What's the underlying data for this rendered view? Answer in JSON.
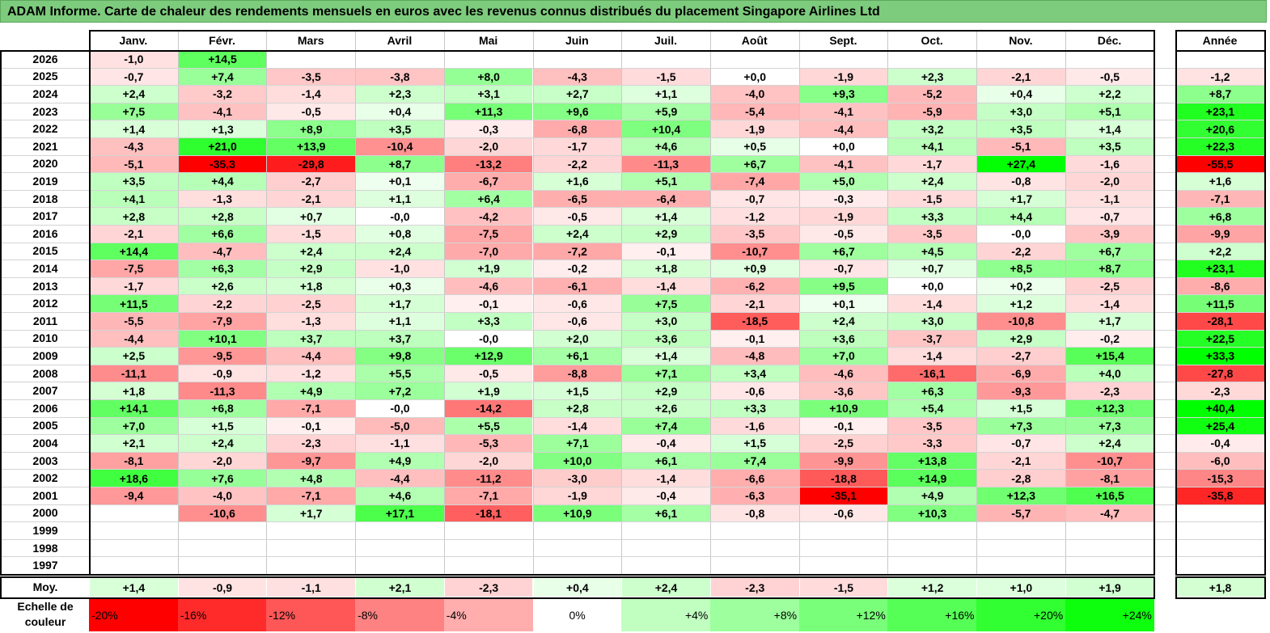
{
  "title": "ADAM Informe. Carte de chaleur des rendements mensuels en euros avec les revenus connus distribués du placement Singapore Airlines Ltd",
  "chart_data": {
    "type": "heatmap",
    "title": "ADAM Informe. Carte de chaleur des rendements mensuels en euros avec les revenus connus distribués du placement Singapore Airlines Ltd",
    "months": [
      "Janv.",
      "Févr.",
      "Mars",
      "Avril",
      "Mai",
      "Juin",
      "Juil.",
      "Août",
      "Sept.",
      "Oct.",
      "Nov.",
      "Déc."
    ],
    "year_header": "Année",
    "avg_label": "Moy.",
    "rows": [
      {
        "year": "2026",
        "values": [
          "-1,0",
          "+14,5",
          "",
          "",
          "",
          "",
          "",
          "",
          "",
          "",
          "",
          ""
        ],
        "annual": ""
      },
      {
        "year": "2025",
        "values": [
          "-0,7",
          "+7,4",
          "-3,5",
          "-3,8",
          "+8,0",
          "-4,3",
          "-1,5",
          "+0,0",
          "-1,9",
          "+2,3",
          "-2,1",
          "-0,5"
        ],
        "annual": "-1,2"
      },
      {
        "year": "2024",
        "values": [
          "+2,4",
          "-3,2",
          "-1,4",
          "+2,3",
          "+3,1",
          "+2,7",
          "+1,1",
          "-4,0",
          "+9,3",
          "-5,2",
          "+0,4",
          "+2,2"
        ],
        "annual": "+8,7"
      },
      {
        "year": "2023",
        "values": [
          "+7,5",
          "-4,1",
          "-0,5",
          "+0,4",
          "+11,3",
          "+9,6",
          "+5,9",
          "-5,4",
          "-4,1",
          "-5,9",
          "+3,0",
          "+5,1"
        ],
        "annual": "+23,1"
      },
      {
        "year": "2022",
        "values": [
          "+1,4",
          "+1,3",
          "+8,9",
          "+3,5",
          "-0,3",
          "-6,8",
          "+10,4",
          "-1,9",
          "-4,4",
          "+3,2",
          "+3,5",
          "+1,4"
        ],
        "annual": "+20,6"
      },
      {
        "year": "2021",
        "values": [
          "-4,3",
          "+21,0",
          "+13,9",
          "-10,4",
          "-2,0",
          "-1,7",
          "+4,6",
          "+0,5",
          "+0,0",
          "+4,1",
          "-5,1",
          "+3,5"
        ],
        "annual": "+22,3"
      },
      {
        "year": "2020",
        "values": [
          "-5,1",
          "-35,3",
          "-29,8",
          "+8,7",
          "-13,2",
          "-2,2",
          "-11,3",
          "+6,7",
          "-4,1",
          "-1,7",
          "+27,4",
          "-1,6"
        ],
        "annual": "-55,5"
      },
      {
        "year": "2019",
        "values": [
          "+3,5",
          "+4,4",
          "-2,7",
          "+0,1",
          "-6,7",
          "+1,6",
          "+5,1",
          "-7,4",
          "+5,0",
          "+2,4",
          "-0,8",
          "-2,0"
        ],
        "annual": "+1,6"
      },
      {
        "year": "2018",
        "values": [
          "+4,1",
          "-1,3",
          "-2,1",
          "+1,1",
          "+6,4",
          "-6,5",
          "-6,4",
          "-0,7",
          "-0,3",
          "-1,5",
          "+1,7",
          "-1,1"
        ],
        "annual": "-7,1"
      },
      {
        "year": "2017",
        "values": [
          "+2,8",
          "+2,8",
          "+0,7",
          "-0,0",
          "-4,2",
          "-0,5",
          "+1,4",
          "-1,2",
          "-1,9",
          "+3,3",
          "+4,4",
          "-0,7"
        ],
        "annual": "+6,8"
      },
      {
        "year": "2016",
        "values": [
          "-2,1",
          "+6,6",
          "-1,5",
          "+0,8",
          "-7,5",
          "+2,4",
          "+2,9",
          "-3,5",
          "-0,5",
          "-3,5",
          "-0,0",
          "-3,9"
        ],
        "annual": "-9,9"
      },
      {
        "year": "2015",
        "values": [
          "+14,4",
          "-4,7",
          "+2,4",
          "+2,4",
          "-7,0",
          "-7,2",
          "-0,1",
          "-10,7",
          "+6,7",
          "+4,5",
          "-2,2",
          "+6,7"
        ],
        "annual": "+2,2"
      },
      {
        "year": "2014",
        "values": [
          "-7,5",
          "+6,3",
          "+2,9",
          "-1,0",
          "+1,9",
          "-0,2",
          "+1,8",
          "+0,9",
          "-0,7",
          "+0,7",
          "+8,5",
          "+8,7"
        ],
        "annual": "+23,1"
      },
      {
        "year": "2013",
        "values": [
          "-1,7",
          "+2,6",
          "+1,8",
          "+0,3",
          "-4,6",
          "-6,1",
          "-1,4",
          "-6,2",
          "+9,5",
          "+0,0",
          "+0,2",
          "-2,5"
        ],
        "annual": "-8,6"
      },
      {
        "year": "2012",
        "values": [
          "+11,5",
          "-2,2",
          "-2,5",
          "+1,7",
          "-0,1",
          "-0,6",
          "+7,5",
          "-2,1",
          "+0,1",
          "-1,4",
          "+1,2",
          "-1,4"
        ],
        "annual": "+11,5"
      },
      {
        "year": "2011",
        "values": [
          "-5,5",
          "-7,9",
          "-1,3",
          "+1,1",
          "+3,3",
          "-0,6",
          "+3,0",
          "-18,5",
          "+2,4",
          "+3,0",
          "-10,8",
          "+1,7"
        ],
        "annual": "-28,1"
      },
      {
        "year": "2010",
        "values": [
          "-4,4",
          "+10,1",
          "+3,7",
          "+3,7",
          "-0,0",
          "+2,0",
          "+3,6",
          "-0,1",
          "+3,6",
          "-3,7",
          "+2,9",
          "-0,2"
        ],
        "annual": "+22,5"
      },
      {
        "year": "2009",
        "values": [
          "+2,5",
          "-9,5",
          "-4,4",
          "+9,8",
          "+12,9",
          "+6,1",
          "+1,4",
          "-4,8",
          "+7,0",
          "-1,4",
          "-2,7",
          "+15,4"
        ],
        "annual": "+33,3"
      },
      {
        "year": "2008",
        "values": [
          "-11,1",
          "-0,9",
          "-1,2",
          "+5,5",
          "-0,5",
          "-8,8",
          "+7,1",
          "+3,4",
          "-4,6",
          "-16,1",
          "-6,9",
          "+4,0"
        ],
        "annual": "-27,8"
      },
      {
        "year": "2007",
        "values": [
          "+1,8",
          "-11,3",
          "+4,9",
          "+7,2",
          "+1,9",
          "+1,5",
          "+2,9",
          "-0,6",
          "-3,6",
          "+6,3",
          "-9,3",
          "-2,3"
        ],
        "annual": "-2,3"
      },
      {
        "year": "2006",
        "values": [
          "+14,1",
          "+6,8",
          "-7,1",
          "-0,0",
          "-14,2",
          "+2,8",
          "+2,6",
          "+3,3",
          "+10,9",
          "+5,4",
          "+1,5",
          "+12,3"
        ],
        "annual": "+40,4"
      },
      {
        "year": "2005",
        "values": [
          "+7,0",
          "+1,5",
          "-0,1",
          "-5,0",
          "+5,5",
          "-1,4",
          "+7,4",
          "-1,6",
          "-0,1",
          "-3,5",
          "+7,3",
          "+7,3"
        ],
        "annual": "+25,4"
      },
      {
        "year": "2004",
        "values": [
          "+2,1",
          "+2,4",
          "-2,3",
          "-1,1",
          "-5,3",
          "+7,1",
          "-0,4",
          "+1,5",
          "-2,5",
          "-3,3",
          "-0,7",
          "+2,4"
        ],
        "annual": "-0,4"
      },
      {
        "year": "2003",
        "values": [
          "-8,1",
          "-2,0",
          "-9,7",
          "+4,9",
          "-2,0",
          "+10,0",
          "+6,1",
          "+7,4",
          "-9,9",
          "+13,8",
          "-2,1",
          "-10,7"
        ],
        "annual": "-6,0"
      },
      {
        "year": "2002",
        "values": [
          "+18,6",
          "+7,6",
          "+4,8",
          "-4,4",
          "-11,2",
          "-3,0",
          "-1,4",
          "-6,6",
          "-18,8",
          "+14,9",
          "-2,8",
          "-8,1"
        ],
        "annual": "-15,3"
      },
      {
        "year": "2001",
        "values": [
          "-9,4",
          "-4,0",
          "-7,1",
          "+4,6",
          "-7,1",
          "-1,9",
          "-0,4",
          "-6,3",
          "-35,1",
          "+4,9",
          "+12,3",
          "+16,5"
        ],
        "annual": "-35,8"
      },
      {
        "year": "2000",
        "values": [
          "",
          "-10,6",
          "+1,7",
          "+17,1",
          "-18,1",
          "+10,9",
          "+6,1",
          "-0,8",
          "-0,6",
          "+10,3",
          "-5,7",
          "-4,7"
        ],
        "annual": ""
      },
      {
        "year": "1999",
        "values": [
          "",
          "",
          "",
          "",
          "",
          "",
          "",
          "",
          "",
          "",
          "",
          ""
        ],
        "annual": ""
      },
      {
        "year": "1998",
        "values": [
          "",
          "",
          "",
          "",
          "",
          "",
          "",
          "",
          "",
          "",
          "",
          ""
        ],
        "annual": ""
      },
      {
        "year": "1997",
        "values": [
          "",
          "",
          "",
          "",
          "",
          "",
          "",
          "",
          "",
          "",
          "",
          ""
        ],
        "annual": ""
      }
    ],
    "averages": {
      "values": [
        "+1,4",
        "-0,9",
        "-1,1",
        "+2,1",
        "-2,3",
        "+0,4",
        "+2,4",
        "-2,3",
        "-1,5",
        "+1,2",
        "+1,0",
        "+1,9"
      ],
      "annual": "+1,8"
    },
    "scale": {
      "caption_line1": "Echelle de",
      "caption_line2": "couleur",
      "steps": [
        "-20%",
        "-16%",
        "-12%",
        "-8%",
        "-4%",
        "0%",
        "+4%",
        "+8%",
        "+12%",
        "+16%",
        "+20%",
        "+24%"
      ],
      "step_values": [
        -20,
        -16,
        -12,
        -8,
        -4,
        0,
        4,
        8,
        12,
        16,
        20,
        24
      ]
    },
    "colors": {
      "negative_max": "#ff0000",
      "neutral": "#ffffff",
      "positive_max": "#00ff00",
      "title_bar": "#7dcb7d"
    }
  }
}
